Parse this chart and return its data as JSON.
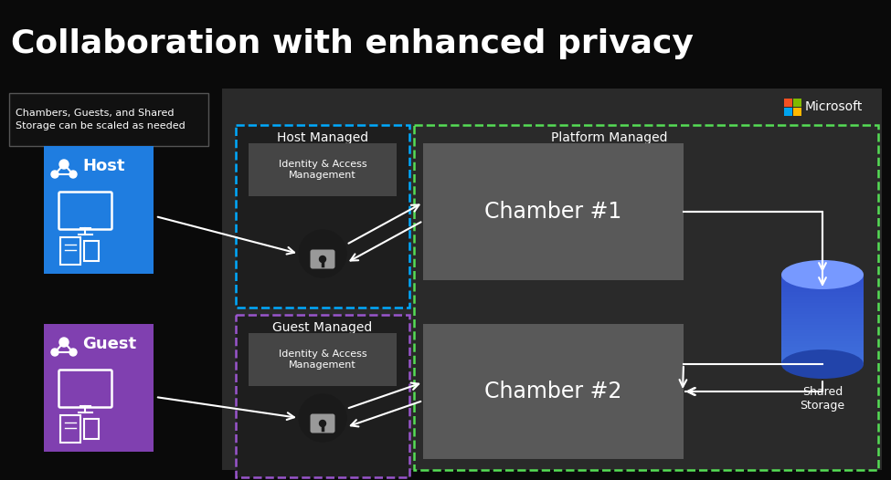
{
  "title": "Collaboration with enhanced privacy",
  "title_fontsize": 26,
  "title_color": "#ffffff",
  "bg_color": "#0a0a0a",
  "main_panel_color": "#2d2d2d",
  "note_text": "Chambers, Guests, and Shared\nStorage can be scaled as needed",
  "host_label": "Host",
  "guest_label": "Guest",
  "host_color": "#1f7de0",
  "guest_color": "#8040b0",
  "host_managed_label": "Host Managed",
  "guest_managed_label": "Guest Managed",
  "iam_label": "Identity & Access\nManagement",
  "platform_managed_label": "Platform Managed",
  "chamber1_label": "Chamber #1",
  "chamber2_label": "Chamber #2",
  "shared_storage_label": "Shared\nStorage",
  "microsoft_label": "Microsoft",
  "chamber_color": "#595959",
  "iam_box_color": "#454545",
  "dashed_blue": "#00aaff",
  "dashed_purple": "#9955cc",
  "dashed_green": "#55dd55",
  "arrow_color": "#ffffff",
  "text_color": "#ffffff",
  "lock_bg": "#222222",
  "lock_body_color": "#aaaaaa",
  "ms_colors": [
    "#f25022",
    "#7fba00",
    "#00a4ef",
    "#ffb900"
  ]
}
